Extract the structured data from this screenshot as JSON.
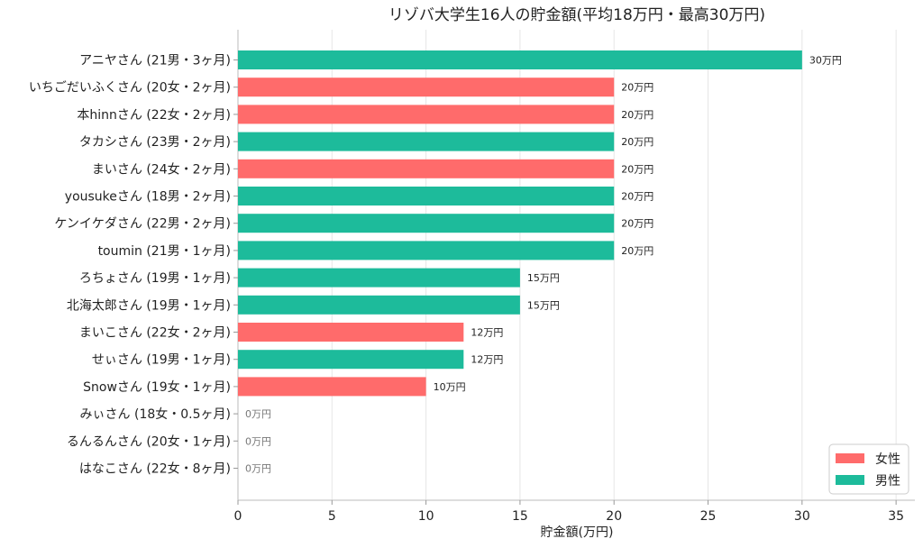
{
  "chart_data": {
    "type": "bar",
    "orientation": "horizontal",
    "title": "リゾバ大学生16人の貯金額(平均18万円・最高30万円)",
    "xlabel": "貯金額(万円)",
    "ylabel": "",
    "xlim": [
      0,
      36
    ],
    "xticks": [
      0,
      5,
      10,
      15,
      20,
      25,
      30,
      35
    ],
    "value_suffix": "万円",
    "grid": "vertical",
    "legend_position": "bottom-right",
    "legend": [
      {
        "label": "女性",
        "color": "#ff6b6b"
      },
      {
        "label": "男性",
        "color": "#1dbb9b"
      }
    ],
    "categories": [
      "アニヤさん (21男・3ヶ月)",
      "いちごだいふくさん (20女・2ヶ月)",
      "本hinnさん (22女・2ヶ月)",
      "タカシさん (23男・2ヶ月)",
      "まいさん (24女・2ヶ月)",
      "yousukeさん (18男・2ヶ月)",
      "ケンイケダさん (22男・2ヶ月)",
      "toumin (21男・1ヶ月)",
      "ろちょさん (19男・1ヶ月)",
      "北海太郎さん (19男・1ヶ月)",
      "まいこさん (22女・2ヶ月)",
      "せぃさん (19男・1ヶ月)",
      "Snowさん (19女・1ヶ月)",
      "みぃさん (18女・0.5ヶ月)",
      "るんるんさん (20女・1ヶ月)",
      "はなこさん (22女・8ヶ月)"
    ],
    "values": [
      30,
      20,
      20,
      20,
      20,
      20,
      20,
      20,
      15,
      15,
      12,
      12,
      10,
      0,
      0,
      0
    ],
    "genders": [
      "男性",
      "女性",
      "女性",
      "男性",
      "女性",
      "男性",
      "男性",
      "男性",
      "男性",
      "男性",
      "女性",
      "男性",
      "女性",
      "女性",
      "女性",
      "女性"
    ]
  }
}
